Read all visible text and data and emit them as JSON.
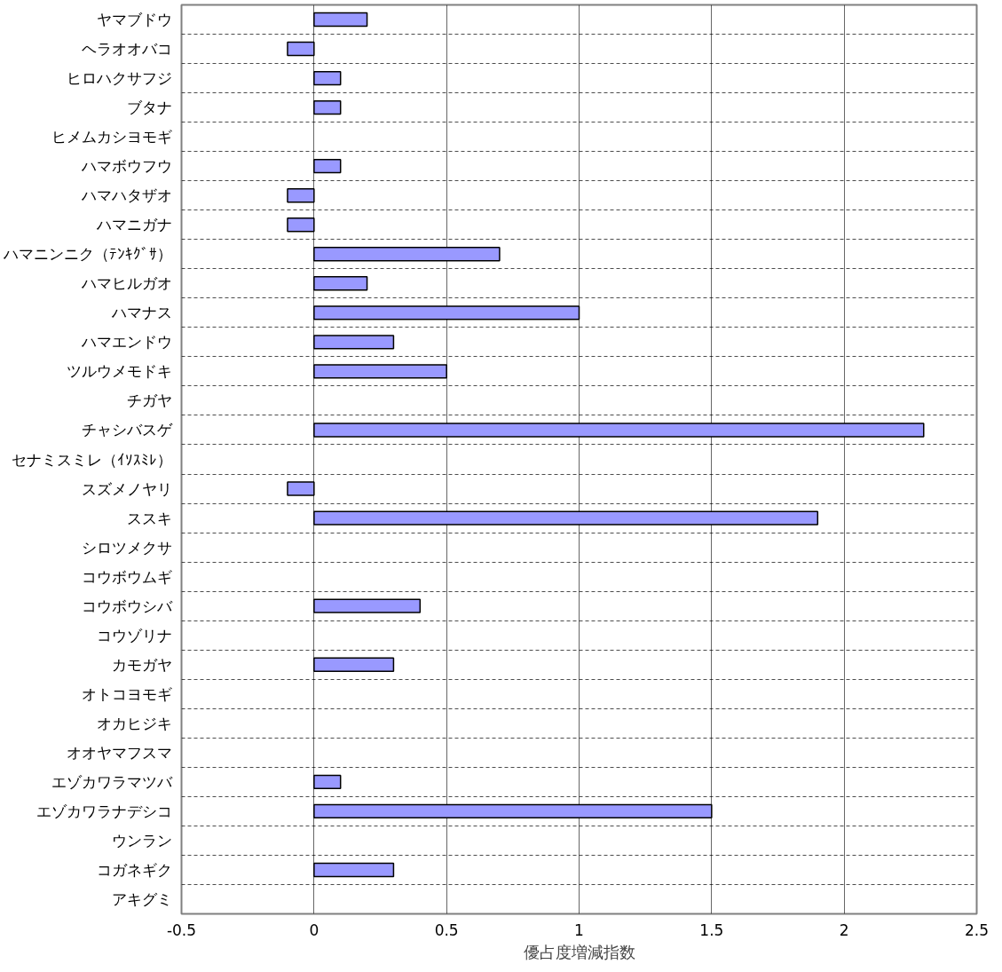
{
  "chart_data": {
    "type": "bar",
    "orientation": "horizontal",
    "xlabel": "優占度増減指数",
    "categories": [
      "ヤマブドウ",
      "ヘラオオバコ",
      "ヒロハクサフジ",
      "ブタナ",
      "ヒメムカシヨモギ",
      "ハマボウフウ",
      "ハマハタザオ",
      "ハマニガナ",
      "ハマニンニク（ﾃﾝｷｸﾞｻ）",
      "ハマヒルガオ",
      "ハマナス",
      "ハマエンドウ",
      "ツルウメモドキ",
      "チガヤ",
      "チャシバスゲ",
      "セナミスミレ（ｲｿｽﾐﾚ）",
      "スズメノヤリ",
      "ススキ",
      "シロツメクサ",
      "コウボウムギ",
      "コウボウシバ",
      "コウゾリナ",
      "カモガヤ",
      "オトコヨモギ",
      "オカヒジキ",
      "オオヤマフスマ",
      "エゾカワラマツバ",
      "エゾカワラナデシコ",
      "ウンラン",
      "コガネギク",
      "アキグミ"
    ],
    "values": [
      0.2,
      -0.1,
      0.1,
      0.1,
      0,
      0.1,
      -0.1,
      -0.1,
      0.7,
      0.2,
      1,
      0.3,
      0.5,
      0,
      2.3,
      0,
      -0.1,
      1.9,
      0,
      0,
      0.4,
      0,
      0.3,
      0,
      0,
      0,
      0.1,
      1.5,
      0,
      0.3,
      0
    ],
    "color": "#9999ff",
    "xlim": [
      -0.5,
      2.5
    ],
    "xticks": [
      -0.5,
      0,
      0.5,
      1,
      1.5,
      2,
      2.5
    ],
    "grid": true
  }
}
